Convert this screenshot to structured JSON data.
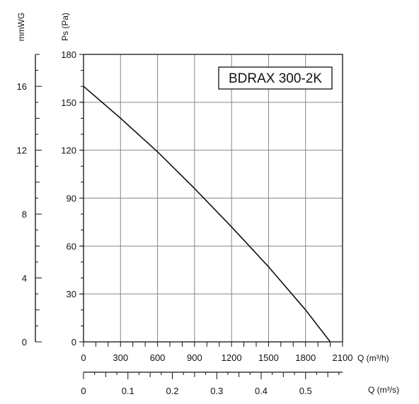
{
  "chart_data": {
    "type": "line",
    "title": "BDRAX 300-2K",
    "xlabel": "Q (m³/h)",
    "ylabel": "Ps (Pa)",
    "xlim": [
      0,
      2100
    ],
    "ylim": [
      0,
      180
    ],
    "x_ticks": [
      0,
      300,
      600,
      900,
      1200,
      1500,
      1800,
      2100
    ],
    "y_ticks": [
      0,
      30,
      60,
      90,
      120,
      150,
      180
    ],
    "grid": true,
    "series": [
      {
        "x": [
          0,
          300,
          600,
          900,
          1200,
          1500,
          1800,
          2000
        ],
        "y": [
          160,
          140,
          119,
          96,
          72,
          47,
          20,
          0
        ]
      }
    ],
    "secondary_y": {
      "label": "mmWG",
      "ticks": [
        0,
        4,
        8,
        12,
        16
      ],
      "range": [
        0,
        18
      ]
    },
    "secondary_x": {
      "label": "Q (m³/s)",
      "ticks": [
        0,
        0.1,
        0.2,
        0.3,
        0.4,
        0.5
      ],
      "range": [
        0,
        0.5833
      ]
    },
    "colors": {
      "line": "#111111",
      "grid": "#888888",
      "axis": "#111111"
    }
  }
}
